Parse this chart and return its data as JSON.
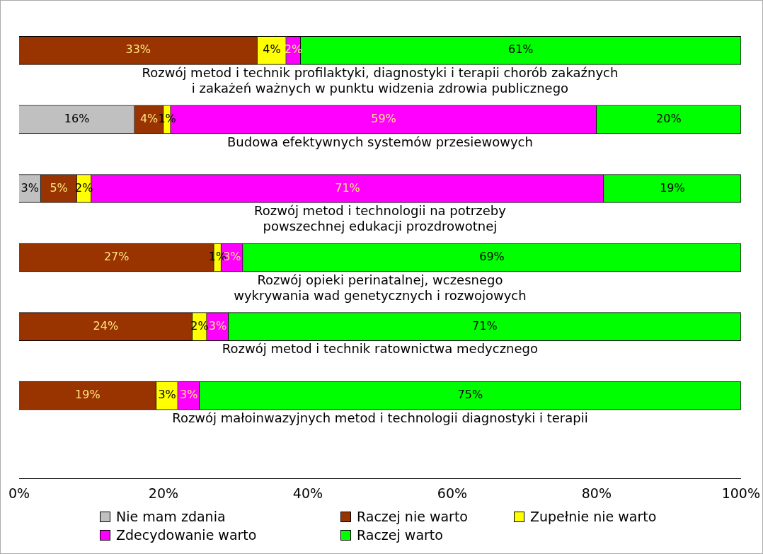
{
  "chart_data": {
    "type": "bar",
    "orientation": "horizontal",
    "stacked": true,
    "legend": "bottom",
    "grid": false,
    "categories": [
      "Rozwój metod i technik profilaktyki, diagnostyki i terapii chorób zakaźnych\ni zakażeń ważnych w punktu widzenia zdrowia publicznego",
      "Budowa efektywnych systemów przesiewowych",
      "Rozwój metod i technologii na potrzeby\npowszechnej edukacji prozdrowotnej",
      "Rozwój opieki perinatalnej, wczesnego\nwykrywania wad genetycznych i rozwojowych",
      "Rozwój metod i technik ratownictwa medycznego",
      "Rozwój małoinwazyjnych metod i technologii diagnostyki i terapii"
    ],
    "xlim": [
      0,
      100
    ],
    "xticks": [
      {
        "value": 0,
        "label": "0%"
      },
      {
        "value": 20,
        "label": "20%"
      },
      {
        "value": 40,
        "label": "40%"
      },
      {
        "value": 60,
        "label": "60%"
      },
      {
        "value": 80,
        "label": "80%"
      },
      {
        "value": 100,
        "label": "100%"
      }
    ],
    "series": [
      {
        "name": "Nie mam zdania",
        "color": "#c0c0c0",
        "values": [
          0,
          16,
          3,
          0,
          0,
          0
        ],
        "value_labels": [
          null,
          "16%",
          "3%",
          null,
          null,
          null
        ]
      },
      {
        "name": "Raczej nie warto",
        "color": "#993300",
        "values": [
          33,
          4,
          5,
          27,
          24,
          19
        ],
        "value_labels": [
          "33%",
          "4%",
          "5%",
          "27%",
          "24%",
          "19%"
        ]
      },
      {
        "name": "Zupełnie nie warto",
        "color": "#ffff00",
        "values": [
          4,
          1,
          2,
          1,
          2,
          3
        ],
        "value_labels": [
          "4%",
          "1%",
          "2%",
          "1%",
          "2%",
          "3%"
        ]
      },
      {
        "name": "Zdecydowanie warto",
        "color": "#ff00ff",
        "values": [
          2,
          59,
          71,
          3,
          3,
          3
        ],
        "value_labels": [
          "2%",
          "59%",
          "71%",
          "3%",
          "3%",
          "3%"
        ]
      },
      {
        "name": "Raczej warto",
        "color": "#00ff00",
        "values": [
          61,
          20,
          19,
          69,
          71,
          75
        ],
        "value_labels": [
          "61%",
          "20%",
          "19%",
          "69%",
          "71%",
          "75%"
        ]
      }
    ]
  }
}
